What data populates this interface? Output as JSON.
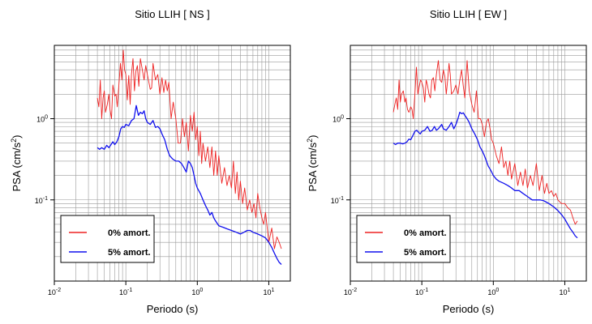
{
  "chart_data": [
    {
      "type": "line",
      "title": "Sitio LLIH [ NS ]",
      "xlabel": "Periodo (s)",
      "ylabel": "PSA (cm/s2)",
      "xscale": "log",
      "yscale": "log",
      "xlim": [
        0.01,
        20
      ],
      "ylim": [
        0.01,
        8
      ],
      "grid": true,
      "legend_position": "bottom-left",
      "x_ticks": [
        "10-2",
        "10-1",
        "100",
        "101"
      ],
      "y_ticks": [
        "10-1",
        "100"
      ],
      "colors": {
        "0% amort.": "#ee2222",
        "5% amort.": "#1010ee"
      },
      "series": [
        {
          "name": "0% amort.",
          "x": [
            0.04,
            0.042,
            0.044,
            0.046,
            0.048,
            0.05,
            0.052,
            0.055,
            0.058,
            0.06,
            0.063,
            0.066,
            0.07,
            0.073,
            0.076,
            0.08,
            0.084,
            0.088,
            0.092,
            0.096,
            0.1,
            0.105,
            0.11,
            0.115,
            0.12,
            0.126,
            0.132,
            0.138,
            0.145,
            0.152,
            0.16,
            0.17,
            0.18,
            0.19,
            0.2,
            0.21,
            0.22,
            0.23,
            0.24,
            0.25,
            0.26,
            0.28,
            0.3,
            0.32,
            0.34,
            0.36,
            0.38,
            0.4,
            0.43,
            0.46,
            0.5,
            0.54,
            0.58,
            0.62,
            0.66,
            0.7,
            0.75,
            0.8,
            0.85,
            0.9,
            0.95,
            1.0,
            1.05,
            1.1,
            1.15,
            1.2,
            1.3,
            1.4,
            1.5,
            1.6,
            1.7,
            1.8,
            1.9,
            2.0,
            2.2,
            2.4,
            2.6,
            2.8,
            3.0,
            3.2,
            3.4,
            3.6,
            3.8,
            4.0,
            4.3,
            4.6,
            5.0,
            5.4,
            5.8,
            6.2,
            6.6,
            7.0,
            7.5,
            8.0,
            8.5,
            9.0,
            10.0,
            11.0,
            12.0,
            13.0,
            14.0,
            15.0
          ],
          "y": [
            1.8,
            1.4,
            3.0,
            1.0,
            1.8,
            2.2,
            1.2,
            1.5,
            2.0,
            1.3,
            1.0,
            2.6,
            1.9,
            2.0,
            1.4,
            2.6,
            4.8,
            3.0,
            7.0,
            4.0,
            3.5,
            1.7,
            3.4,
            1.5,
            3.5,
            5.5,
            2.2,
            3.8,
            4.5,
            2.5,
            5.5,
            4.0,
            3.0,
            4.5,
            3.5,
            2.8,
            2.3,
            2.4,
            4.8,
            3.8,
            3.0,
            3.5,
            2.0,
            3.2,
            2.1,
            3.0,
            2.2,
            2.8,
            1.0,
            1.6,
            1.0,
            0.5,
            0.5,
            1.0,
            0.6,
            0.9,
            0.4,
            1.1,
            0.7,
            1.2,
            0.55,
            0.8,
            0.35,
            0.7,
            0.28,
            0.5,
            0.3,
            0.45,
            0.25,
            0.45,
            0.2,
            0.4,
            0.2,
            0.35,
            0.16,
            0.25,
            0.15,
            0.2,
            0.14,
            0.3,
            0.12,
            0.22,
            0.1,
            0.17,
            0.09,
            0.14,
            0.075,
            0.1,
            0.07,
            0.09,
            0.06,
            0.12,
            0.08,
            0.06,
            0.05,
            0.07,
            0.03,
            0.045,
            0.025,
            0.035,
            0.03,
            0.025
          ]
        },
        {
          "name": "5% amort.",
          "x": [
            0.04,
            0.043,
            0.046,
            0.05,
            0.054,
            0.058,
            0.062,
            0.066,
            0.07,
            0.075,
            0.08,
            0.085,
            0.09,
            0.095,
            0.1,
            0.11,
            0.12,
            0.13,
            0.14,
            0.15,
            0.16,
            0.17,
            0.18,
            0.19,
            0.2,
            0.22,
            0.24,
            0.26,
            0.28,
            0.3,
            0.32,
            0.35,
            0.38,
            0.41,
            0.45,
            0.5,
            0.55,
            0.6,
            0.65,
            0.7,
            0.75,
            0.8,
            0.85,
            0.9,
            0.95,
            1.0,
            1.1,
            1.2,
            1.3,
            1.4,
            1.5,
            1.6,
            1.7,
            1.8,
            2.0,
            2.3,
            2.6,
            3.0,
            3.5,
            4.0,
            4.5,
            5.0,
            5.5,
            6.0,
            7.0,
            8.0,
            9.0,
            10.0,
            11.0,
            12.0,
            13.0,
            14.0,
            15.0
          ],
          "y": [
            0.44,
            0.42,
            0.44,
            0.42,
            0.47,
            0.44,
            0.48,
            0.52,
            0.48,
            0.52,
            0.6,
            0.75,
            0.8,
            0.78,
            0.85,
            0.82,
            0.95,
            1.0,
            1.45,
            1.1,
            1.2,
            1.15,
            1.25,
            1.0,
            0.9,
            0.85,
            0.95,
            0.78,
            0.8,
            0.75,
            0.65,
            0.55,
            0.42,
            0.35,
            0.32,
            0.3,
            0.3,
            0.28,
            0.25,
            0.22,
            0.3,
            0.28,
            0.25,
            0.2,
            0.16,
            0.14,
            0.12,
            0.1,
            0.085,
            0.075,
            0.065,
            0.07,
            0.06,
            0.055,
            0.048,
            0.046,
            0.044,
            0.042,
            0.04,
            0.038,
            0.04,
            0.042,
            0.042,
            0.04,
            0.038,
            0.036,
            0.034,
            0.03,
            0.026,
            0.022,
            0.019,
            0.017,
            0.016
          ]
        }
      ]
    },
    {
      "type": "line",
      "title": "Sitio LLIH [ EW ]",
      "xlabel": "Periodo (s)",
      "ylabel": "PSA (cm/s2)",
      "xscale": "log",
      "yscale": "log",
      "xlim": [
        0.01,
        20
      ],
      "ylim": [
        0.01,
        8
      ],
      "grid": true,
      "legend_position": "bottom-left",
      "x_ticks": [
        "10-2",
        "10-1",
        "100",
        "101"
      ],
      "y_ticks": [
        "10-1",
        "100"
      ],
      "colors": {
        "0% amort.": "#ee2222",
        "5% amort.": "#1010ee"
      },
      "series": [
        {
          "name": "0% amort.",
          "x": [
            0.04,
            0.042,
            0.044,
            0.046,
            0.048,
            0.05,
            0.052,
            0.055,
            0.058,
            0.06,
            0.063,
            0.066,
            0.07,
            0.073,
            0.076,
            0.08,
            0.084,
            0.088,
            0.092,
            0.096,
            0.1,
            0.105,
            0.11,
            0.115,
            0.12,
            0.126,
            0.132,
            0.138,
            0.145,
            0.152,
            0.16,
            0.17,
            0.18,
            0.19,
            0.2,
            0.21,
            0.22,
            0.23,
            0.24,
            0.25,
            0.26,
            0.28,
            0.3,
            0.32,
            0.34,
            0.36,
            0.38,
            0.4,
            0.43,
            0.46,
            0.5,
            0.54,
            0.58,
            0.62,
            0.66,
            0.7,
            0.75,
            0.8,
            0.85,
            0.9,
            0.95,
            1.0,
            1.1,
            1.2,
            1.3,
            1.4,
            1.5,
            1.6,
            1.7,
            1.8,
            2.0,
            2.2,
            2.4,
            2.6,
            2.8,
            3.0,
            3.3,
            3.6,
            4.0,
            4.4,
            4.8,
            5.2,
            5.6,
            6.0,
            6.5,
            7.0,
            7.5,
            8.0,
            9.0,
            10.0,
            11.0,
            12.0,
            13.0,
            14.0,
            15.0
          ],
          "y": [
            1.2,
            1.5,
            1.8,
            1.3,
            3.0,
            1.6,
            2.0,
            2.2,
            1.6,
            1.8,
            1.3,
            1.2,
            1.4,
            1.3,
            1.0,
            2.0,
            4.3,
            2.0,
            2.5,
            3.0,
            2.8,
            2.4,
            1.6,
            3.0,
            2.6,
            2.0,
            1.8,
            3.0,
            3.2,
            2.2,
            3.5,
            5.2,
            3.0,
            2.8,
            4.0,
            3.3,
            2.0,
            3.0,
            4.8,
            3.5,
            2.0,
            2.2,
            2.6,
            2.0,
            3.0,
            4.0,
            2.5,
            1.8,
            5.2,
            2.2,
            1.5,
            1.2,
            2.2,
            1.0,
            1.0,
            0.85,
            0.6,
            0.9,
            1.0,
            0.75,
            0.55,
            0.5,
            0.35,
            0.28,
            0.45,
            0.25,
            0.3,
            0.2,
            0.3,
            0.18,
            0.28,
            0.15,
            0.22,
            0.15,
            0.24,
            0.14,
            0.2,
            0.15,
            0.28,
            0.13,
            0.2,
            0.12,
            0.16,
            0.12,
            0.13,
            0.11,
            0.12,
            0.1,
            0.09,
            0.09,
            0.08,
            0.075,
            0.06,
            0.05,
            0.055
          ]
        },
        {
          "name": "5% amort.",
          "x": [
            0.04,
            0.043,
            0.046,
            0.05,
            0.054,
            0.058,
            0.062,
            0.066,
            0.07,
            0.075,
            0.08,
            0.085,
            0.09,
            0.095,
            0.1,
            0.11,
            0.12,
            0.13,
            0.14,
            0.15,
            0.16,
            0.17,
            0.18,
            0.19,
            0.2,
            0.22,
            0.24,
            0.26,
            0.28,
            0.3,
            0.32,
            0.34,
            0.36,
            0.38,
            0.4,
            0.43,
            0.46,
            0.5,
            0.55,
            0.6,
            0.65,
            0.7,
            0.75,
            0.8,
            0.85,
            0.9,
            0.95,
            1.0,
            1.1,
            1.2,
            1.4,
            1.6,
            1.8,
            2.0,
            2.3,
            2.6,
            3.0,
            3.5,
            4.0,
            4.5,
            5.0,
            5.5,
            6.0,
            7.0,
            8.0,
            9.0,
            10.0,
            11.0,
            12.0,
            13.0,
            14.0,
            15.0
          ],
          "y": [
            0.5,
            0.48,
            0.5,
            0.5,
            0.49,
            0.5,
            0.52,
            0.56,
            0.55,
            0.62,
            0.7,
            0.72,
            0.68,
            0.65,
            0.7,
            0.72,
            0.8,
            0.7,
            0.72,
            0.8,
            0.72,
            0.75,
            0.8,
            0.85,
            0.75,
            0.72,
            0.8,
            0.9,
            0.75,
            0.85,
            1.0,
            1.2,
            1.15,
            1.18,
            1.1,
            1.0,
            0.9,
            0.75,
            0.65,
            0.55,
            0.45,
            0.4,
            0.35,
            0.3,
            0.26,
            0.24,
            0.22,
            0.2,
            0.18,
            0.17,
            0.16,
            0.15,
            0.14,
            0.13,
            0.13,
            0.12,
            0.11,
            0.1,
            0.1,
            0.1,
            0.098,
            0.094,
            0.09,
            0.082,
            0.074,
            0.066,
            0.058,
            0.05,
            0.044,
            0.04,
            0.036,
            0.034
          ]
        }
      ]
    }
  ]
}
